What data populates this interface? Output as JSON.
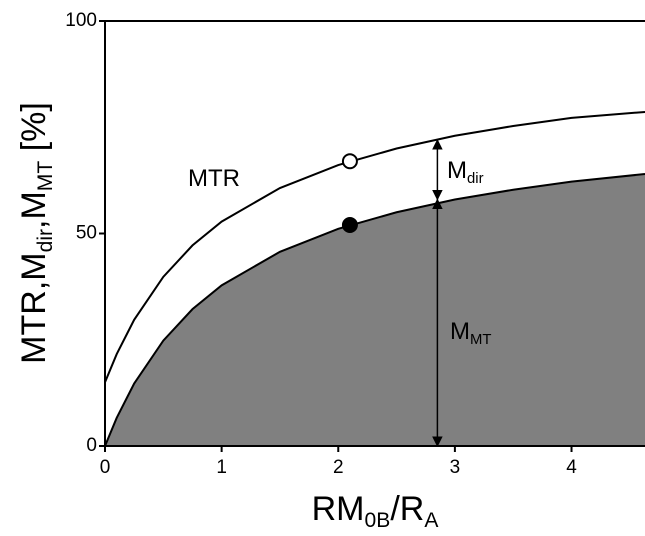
{
  "chart_data": {
    "type": "line",
    "x": [
      0,
      0.1,
      0.25,
      0.5,
      0.75,
      1,
      1.5,
      2,
      2.5,
      3,
      3.5,
      4,
      4.63
    ],
    "series": [
      {
        "name": "MTR",
        "color": "#000000",
        "fill": "none",
        "values": [
          15,
          21.6,
          29.7,
          39.8,
          47.2,
          52.8,
          60.7,
          66.1,
          70.0,
          73.0,
          75.3,
          77.2,
          78.6
        ]
      },
      {
        "name": "MT",
        "color": "#000000",
        "fill": "#808080",
        "values": [
          0,
          6.6,
          14.7,
          24.8,
          32.2,
          37.8,
          45.7,
          51.1,
          55.0,
          58.0,
          60.3,
          62.2,
          64.0
        ]
      }
    ],
    "points": [
      {
        "x": 2.1,
        "y": 67,
        "fill": "#ffffff"
      },
      {
        "x": 2.1,
        "y": 52,
        "fill": "#000000"
      }
    ],
    "arrows": [
      {
        "x": 2.85,
        "from": 58,
        "to": 72
      },
      {
        "x": 2.85,
        "from": 0,
        "to": 58
      }
    ],
    "annotations": [
      [
        {
          "text": "MTR"
        }
      ],
      [
        {
          "text": "M"
        },
        {
          "text": "dir",
          "sub": true
        }
      ],
      [
        {
          "text": "M"
        },
        {
          "text": "MT",
          "sub": true
        }
      ]
    ],
    "xlabel": [
      {
        "text": "RM"
      },
      {
        "text": "0B",
        "sub": true
      },
      {
        "text": "/R"
      },
      {
        "text": "A",
        "sub": true
      }
    ],
    "ylabel": [
      {
        "text": "MTR,M"
      },
      {
        "text": "dir",
        "sub": true
      },
      {
        "text": ",M"
      },
      {
        "text": "MT",
        "sub": true
      },
      {
        "text": " [%]"
      }
    ],
    "xlim": [
      0,
      4.63
    ],
    "ylim": [
      0,
      100
    ],
    "xticks": [
      0,
      1,
      2,
      3,
      4
    ],
    "yticks": [
      0,
      50,
      100
    ]
  }
}
